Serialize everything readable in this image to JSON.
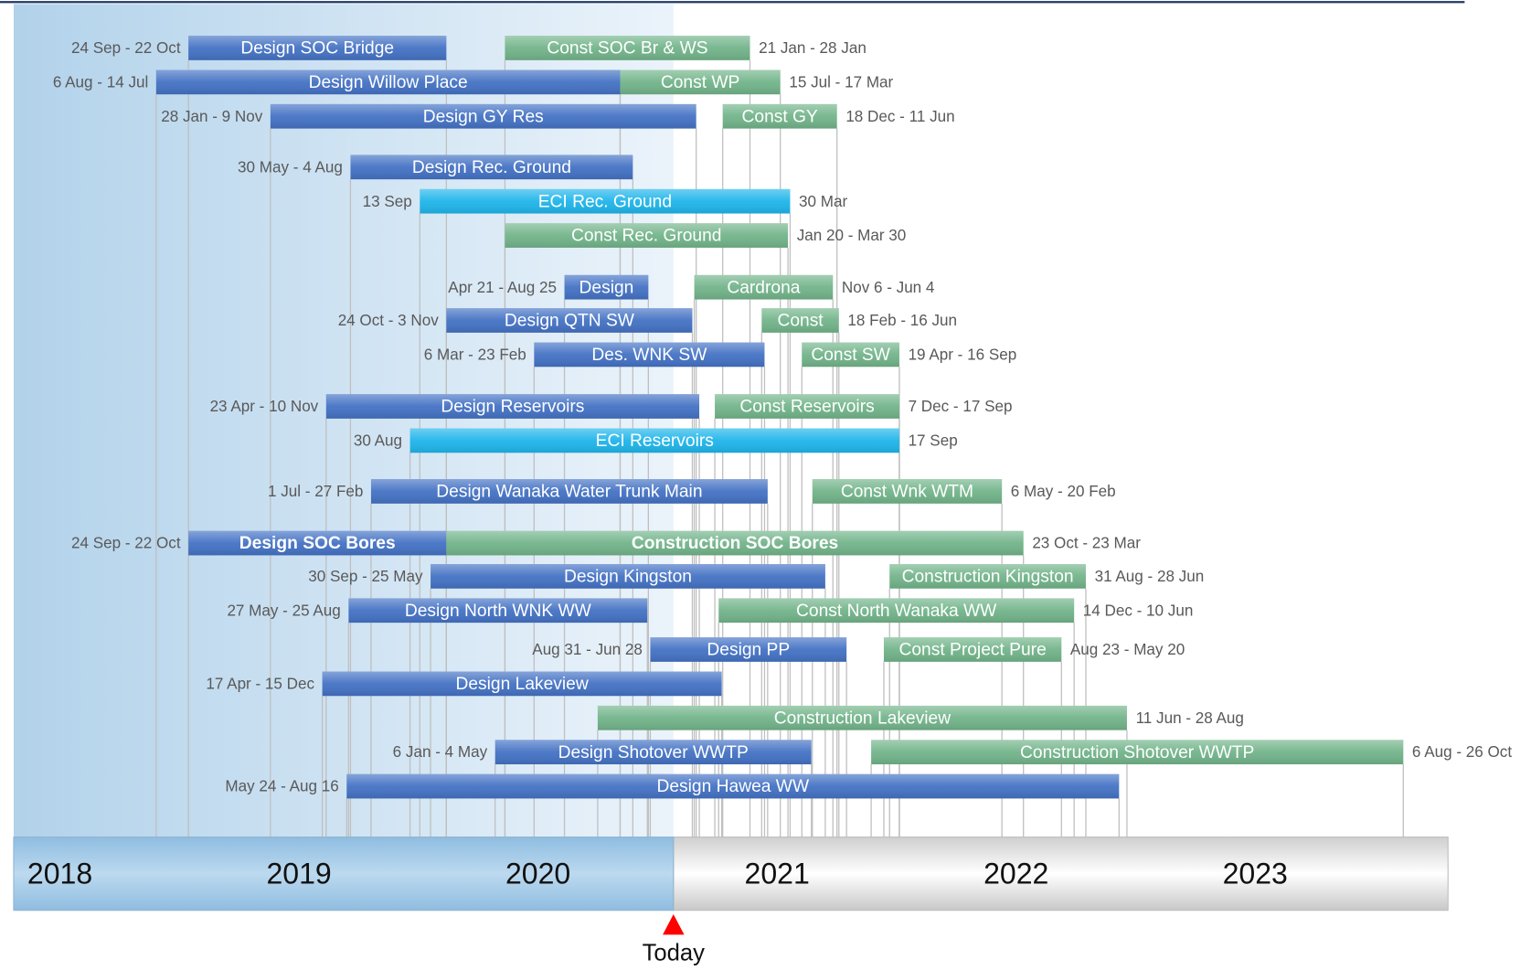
{
  "chart_data": {
    "type": "gantt",
    "xlim": [
      2018,
      2024
    ],
    "xticks": [
      2018,
      2019,
      2020,
      2021,
      2022,
      2023
    ],
    "today": {
      "label": "Today",
      "value": 2020.76
    },
    "rows": [
      {
        "tasks": [
          {
            "name": "Design SOC Bridge",
            "start": 2018.731,
            "end": 2019.81,
            "color": "#4472c4",
            "start_label": "24 Sep - 22 Oct"
          },
          {
            "name": "Const SOC Br & WS",
            "start": 2020.055,
            "end": 2021.08,
            "color": "#72b48a",
            "end_label": "21 Jan - 28 Jan"
          }
        ]
      },
      {
        "tasks": [
          {
            "name": "Design Willow Place",
            "start": 2018.596,
            "end": 2020.537,
            "color": "#4472c4",
            "start_label": "6 Aug - 14 Jul"
          },
          {
            "name": "Const WP",
            "start": 2020.537,
            "end": 2021.207,
            "color": "#72b48a",
            "end_label": "15 Jul - 17 Mar"
          }
        ]
      },
      {
        "tasks": [
          {
            "name": "Design GY Res",
            "start": 2019.074,
            "end": 2020.855,
            "color": "#4472c4",
            "start_label": "28 Jan - 9 Nov"
          },
          {
            "name": "Const GY",
            "start": 2020.966,
            "end": 2021.444,
            "color": "#72b48a",
            "end_label": "18 Dec - 11 Jun"
          }
        ]
      },
      {
        "tasks": [
          {
            "name": "Design Rec. Ground",
            "start": 2019.409,
            "end": 2020.59,
            "color": "#4472c4",
            "start_label": "30 May - 4 Aug"
          }
        ]
      },
      {
        "tasks": [
          {
            "name": "ECI Rec. Ground",
            "start": 2019.699,
            "end": 2021.248,
            "color": "#1fb5ea",
            "start_label": "13 Sep",
            "end_label": "30 Mar"
          }
        ]
      },
      {
        "tasks": [
          {
            "name": "Const Rec. Ground",
            "start": 2020.055,
            "end": 2021.239,
            "color": "#72b48a",
            "end_label": "Jan 20 - Mar 30"
          }
        ]
      },
      {
        "tasks": [
          {
            "name": "Design",
            "start": 2020.304,
            "end": 2020.655,
            "color": "#4472c4",
            "start_label": "Apr 21 - Aug 25"
          },
          {
            "name": "Cardrona",
            "start": 2020.847,
            "end": 2021.427,
            "color": "#72b48a",
            "end_label": "Nov 6 - Jun 4"
          }
        ]
      },
      {
        "tasks": [
          {
            "name": "Design QTN SW",
            "start": 2019.81,
            "end": 2020.839,
            "color": "#4472c4",
            "start_label": "24 Oct - 3 Nov"
          },
          {
            "name": "Const",
            "start": 2021.129,
            "end": 2021.452,
            "color": "#72b48a",
            "end_label": "18 Feb - 16 Jun"
          }
        ]
      },
      {
        "tasks": [
          {
            "name": "Des. WNK SW",
            "start": 2020.177,
            "end": 2021.141,
            "color": "#4472c4",
            "start_label": "6 Mar - 23 Feb"
          },
          {
            "name": "Const SW",
            "start": 2021.297,
            "end": 2021.705,
            "color": "#72b48a",
            "end_label": "19 Apr - 16 Sep"
          }
        ]
      },
      {
        "tasks": [
          {
            "name": "Design Reservoirs",
            "start": 2019.307,
            "end": 2020.868,
            "color": "#4472c4",
            "start_label": "23 Apr - 10 Nov"
          },
          {
            "name": "Const Reservoirs",
            "start": 2020.933,
            "end": 2021.705,
            "color": "#72b48a",
            "end_label": "7 Dec - 17 Sep"
          }
        ]
      },
      {
        "tasks": [
          {
            "name": "ECI Reservoirs",
            "start": 2019.658,
            "end": 2021.705,
            "color": "#1fb5ea",
            "start_label": "30 Aug",
            "end_label": "17 Sep"
          }
        ]
      },
      {
        "tasks": [
          {
            "name": "Design Wanaka Water Trunk Main",
            "start": 2019.495,
            "end": 2021.154,
            "color": "#4472c4",
            "start_label": "1 Jul - 27 Feb"
          },
          {
            "name": "Const Wnk WTM",
            "start": 2021.341,
            "end": 2022.134,
            "color": "#72b48a",
            "end_label": "6 May - 20 Feb"
          }
        ]
      },
      {
        "tasks": [
          {
            "name": "Design SOC Bores",
            "start": 2018.731,
            "end": 2019.81,
            "color": "#4472c4",
            "start_label": "24 Sep - 22 Oct",
            "bold": true
          },
          {
            "name": "Construction SOC Bores",
            "start": 2019.81,
            "end": 2022.224,
            "color": "#72b48a",
            "end_label": "23 Oct - 23 Mar",
            "bold": true
          }
        ]
      },
      {
        "tasks": [
          {
            "name": "Design Kingston",
            "start": 2019.744,
            "end": 2021.395,
            "color": "#4472c4",
            "start_label": "30 Sep - 25 May"
          },
          {
            "name": "Construction Kingston",
            "start": 2021.664,
            "end": 2022.485,
            "color": "#72b48a",
            "end_label": "31 Aug - 28 Jun"
          }
        ]
      },
      {
        "tasks": [
          {
            "name": "Design North WNK WW",
            "start": 2019.401,
            "end": 2020.651,
            "color": "#4472c4",
            "start_label": "27 May - 25 Aug"
          },
          {
            "name": "Const North Wanaka WW",
            "start": 2020.949,
            "end": 2022.436,
            "color": "#72b48a",
            "end_label": "14 Dec - 10 Jun"
          }
        ]
      },
      {
        "tasks": [
          {
            "name": "Design PP",
            "start": 2020.663,
            "end": 2021.484,
            "color": "#4472c4",
            "start_label": "Aug 31 - Jun 28"
          },
          {
            "name": "Const Project Pure",
            "start": 2021.64,
            "end": 2022.383,
            "color": "#72b48a",
            "end_label": "Aug 23 - May 20"
          }
        ]
      },
      {
        "tasks": [
          {
            "name": "Design Lakeview",
            "start": 2019.291,
            "end": 2020.962,
            "color": "#4472c4",
            "start_label": "17 Apr - 15 Dec"
          }
        ]
      },
      {
        "tasks": [
          {
            "name": "Construction Lakeview",
            "start": 2020.443,
            "end": 2022.657,
            "color": "#72b48a",
            "end_label": "11 Jun - 28 Aug"
          }
        ]
      },
      {
        "tasks": [
          {
            "name": "Design Shotover WWTP",
            "start": 2020.014,
            "end": 2021.337,
            "color": "#4472c4",
            "start_label": "6 Jan - 4 May"
          },
          {
            "name": "Construction Shotover WWTP",
            "start": 2021.587,
            "end": 2023.813,
            "color": "#72b48a",
            "end_label": "6 Aug - 26 Oct"
          }
        ]
      },
      {
        "tasks": [
          {
            "name": "Design Hawea WW",
            "start": 2019.393,
            "end": 2022.624,
            "color": "#4472c4",
            "start_label": "May 24 - Aug 16"
          }
        ]
      }
    ]
  }
}
